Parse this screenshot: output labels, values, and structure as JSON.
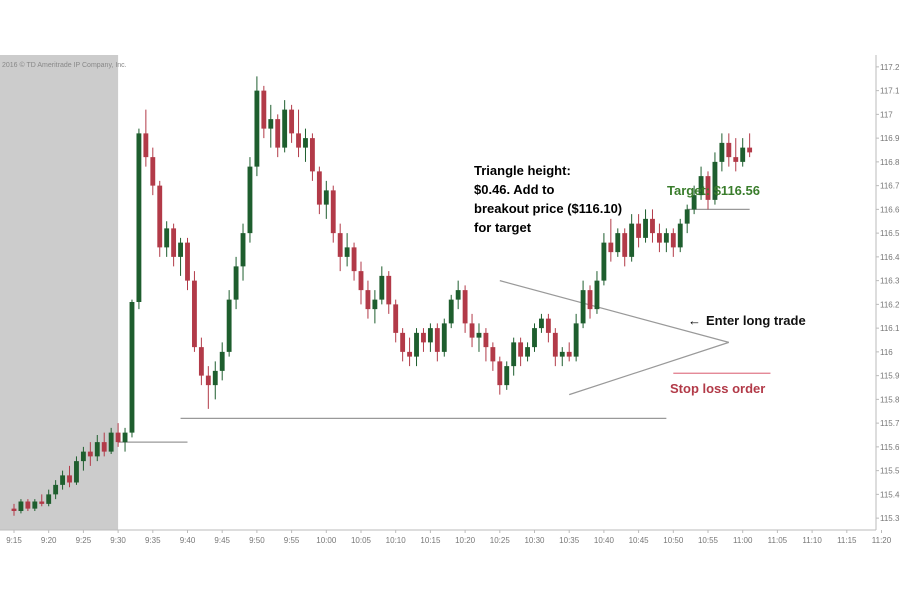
{
  "chart_data": {
    "type": "candlestick",
    "copyright": "2016 © TD Ameritrade IP Company, Inc.",
    "colors": {
      "up": "#1e5e2e",
      "down": "#b23a48",
      "premarket_shade": "#cccccc",
      "annotation_text": "#111111",
      "target_text": "#3a7d2c",
      "stop_text": "#b23a48",
      "trend_line": "#999999",
      "stop_line": "#e07a8a"
    },
    "y_axis": {
      "side": "right",
      "range": [
        115.25,
        117.25
      ],
      "ticks": [
        "115.3",
        "115.4",
        "115.5",
        "115.6",
        "115.7",
        "115.8",
        "115.9",
        "116",
        "116.1",
        "116.2",
        "116.3",
        "116.4",
        "116.5",
        "116.6",
        "116.7",
        "116.8",
        "116.9",
        "117",
        "117.1",
        "117.2"
      ]
    },
    "x_axis": {
      "time_ticks": [
        "9:15",
        "9:20",
        "9:25",
        "9:30",
        "9:35",
        "9:40",
        "9:45",
        "9:50",
        "9:55",
        "10:00",
        "10:05",
        "10:10",
        "10:15",
        "10:20",
        "10:25",
        "10:30",
        "10:35",
        "10:40",
        "10:45",
        "10:50",
        "10:55",
        "11:00",
        "11:05",
        "11:10",
        "11:15",
        "11:20"
      ]
    },
    "premarket_end": "9:30",
    "candles": [
      {
        "o": 115.34,
        "h": 115.36,
        "l": 115.31,
        "c": 115.33
      },
      {
        "o": 115.33,
        "h": 115.38,
        "l": 115.32,
        "c": 115.37
      },
      {
        "o": 115.37,
        "h": 115.38,
        "l": 115.33,
        "c": 115.34
      },
      {
        "o": 115.34,
        "h": 115.38,
        "l": 115.33,
        "c": 115.37
      },
      {
        "o": 115.37,
        "h": 115.4,
        "l": 115.35,
        "c": 115.36
      },
      {
        "o": 115.36,
        "h": 115.42,
        "l": 115.35,
        "c": 115.4
      },
      {
        "o": 115.4,
        "h": 115.46,
        "l": 115.38,
        "c": 115.44
      },
      {
        "o": 115.44,
        "h": 115.5,
        "l": 115.42,
        "c": 115.48
      },
      {
        "o": 115.48,
        "h": 115.52,
        "l": 115.43,
        "c": 115.45
      },
      {
        "o": 115.45,
        "h": 115.56,
        "l": 115.44,
        "c": 115.54
      },
      {
        "o": 115.54,
        "h": 115.6,
        "l": 115.5,
        "c": 115.58
      },
      {
        "o": 115.58,
        "h": 115.62,
        "l": 115.52,
        "c": 115.56
      },
      {
        "o": 115.56,
        "h": 115.65,
        "l": 115.54,
        "c": 115.62
      },
      {
        "o": 115.62,
        "h": 115.66,
        "l": 115.56,
        "c": 115.58
      },
      {
        "o": 115.58,
        "h": 115.68,
        "l": 115.57,
        "c": 115.66
      },
      {
        "o": 115.66,
        "h": 115.7,
        "l": 115.6,
        "c": 115.62
      },
      {
        "o": 115.62,
        "h": 115.68,
        "l": 115.58,
        "c": 115.66
      },
      {
        "o": 115.66,
        "h": 116.22,
        "l": 115.64,
        "c": 116.21
      },
      {
        "o": 116.21,
        "h": 116.94,
        "l": 116.18,
        "c": 116.92
      },
      {
        "o": 116.92,
        "h": 117.02,
        "l": 116.78,
        "c": 116.82
      },
      {
        "o": 116.82,
        "h": 116.86,
        "l": 116.66,
        "c": 116.7
      },
      {
        "o": 116.7,
        "h": 116.72,
        "l": 116.4,
        "c": 116.44
      },
      {
        "o": 116.44,
        "h": 116.55,
        "l": 116.4,
        "c": 116.52
      },
      {
        "o": 116.52,
        "h": 116.54,
        "l": 116.36,
        "c": 116.4
      },
      {
        "o": 116.4,
        "h": 116.48,
        "l": 116.32,
        "c": 116.46
      },
      {
        "o": 116.46,
        "h": 116.48,
        "l": 116.26,
        "c": 116.3
      },
      {
        "o": 116.3,
        "h": 116.34,
        "l": 116.0,
        "c": 116.02
      },
      {
        "o": 116.02,
        "h": 116.06,
        "l": 115.86,
        "c": 115.9
      },
      {
        "o": 115.9,
        "h": 115.94,
        "l": 115.76,
        "c": 115.86
      },
      {
        "o": 115.86,
        "h": 115.96,
        "l": 115.8,
        "c": 115.92
      },
      {
        "o": 115.92,
        "h": 116.04,
        "l": 115.88,
        "c": 116.0
      },
      {
        "o": 116.0,
        "h": 116.26,
        "l": 115.98,
        "c": 116.22
      },
      {
        "o": 116.22,
        "h": 116.4,
        "l": 116.18,
        "c": 116.36
      },
      {
        "o": 116.36,
        "h": 116.54,
        "l": 116.3,
        "c": 116.5
      },
      {
        "o": 116.5,
        "h": 116.82,
        "l": 116.46,
        "c": 116.78
      },
      {
        "o": 116.78,
        "h": 117.16,
        "l": 116.74,
        "c": 117.1
      },
      {
        "o": 117.1,
        "h": 117.12,
        "l": 116.9,
        "c": 116.94
      },
      {
        "o": 116.94,
        "h": 117.04,
        "l": 116.86,
        "c": 116.98
      },
      {
        "o": 116.98,
        "h": 117.0,
        "l": 116.82,
        "c": 116.86
      },
      {
        "o": 116.86,
        "h": 117.06,
        "l": 116.84,
        "c": 117.02
      },
      {
        "o": 117.02,
        "h": 117.04,
        "l": 116.88,
        "c": 116.92
      },
      {
        "o": 116.92,
        "h": 117.02,
        "l": 116.82,
        "c": 116.86
      },
      {
        "o": 116.86,
        "h": 116.94,
        "l": 116.8,
        "c": 116.9
      },
      {
        "o": 116.9,
        "h": 116.92,
        "l": 116.72,
        "c": 116.76
      },
      {
        "o": 116.76,
        "h": 116.78,
        "l": 116.58,
        "c": 116.62
      },
      {
        "o": 116.62,
        "h": 116.72,
        "l": 116.56,
        "c": 116.68
      },
      {
        "o": 116.68,
        "h": 116.7,
        "l": 116.46,
        "c": 116.5
      },
      {
        "o": 116.5,
        "h": 116.54,
        "l": 116.34,
        "c": 116.4
      },
      {
        "o": 116.4,
        "h": 116.5,
        "l": 116.36,
        "c": 116.44
      },
      {
        "o": 116.44,
        "h": 116.46,
        "l": 116.3,
        "c": 116.34
      },
      {
        "o": 116.34,
        "h": 116.38,
        "l": 116.2,
        "c": 116.26
      },
      {
        "o": 116.26,
        "h": 116.3,
        "l": 116.14,
        "c": 116.18
      },
      {
        "o": 116.18,
        "h": 116.26,
        "l": 116.12,
        "c": 116.22
      },
      {
        "o": 116.22,
        "h": 116.36,
        "l": 116.2,
        "c": 116.32
      },
      {
        "o": 116.32,
        "h": 116.34,
        "l": 116.16,
        "c": 116.2
      },
      {
        "o": 116.2,
        "h": 116.22,
        "l": 116.04,
        "c": 116.08
      },
      {
        "o": 116.08,
        "h": 116.1,
        "l": 115.96,
        "c": 116.0
      },
      {
        "o": 116.0,
        "h": 116.06,
        "l": 115.94,
        "c": 115.98
      },
      {
        "o": 115.98,
        "h": 116.1,
        "l": 115.94,
        "c": 116.08
      },
      {
        "o": 116.08,
        "h": 116.1,
        "l": 116.0,
        "c": 116.04
      },
      {
        "o": 116.04,
        "h": 116.12,
        "l": 116.0,
        "c": 116.1
      },
      {
        "o": 116.1,
        "h": 116.12,
        "l": 115.96,
        "c": 116.0
      },
      {
        "o": 116.0,
        "h": 116.14,
        "l": 115.98,
        "c": 116.12
      },
      {
        "o": 116.12,
        "h": 116.24,
        "l": 116.1,
        "c": 116.22
      },
      {
        "o": 116.22,
        "h": 116.3,
        "l": 116.18,
        "c": 116.26
      },
      {
        "o": 116.26,
        "h": 116.28,
        "l": 116.08,
        "c": 116.12
      },
      {
        "o": 116.12,
        "h": 116.16,
        "l": 116.02,
        "c": 116.06
      },
      {
        "o": 116.06,
        "h": 116.12,
        "l": 116.0,
        "c": 116.08
      },
      {
        "o": 116.08,
        "h": 116.1,
        "l": 115.96,
        "c": 116.02
      },
      {
        "o": 116.02,
        "h": 116.04,
        "l": 115.92,
        "c": 115.96
      },
      {
        "o": 115.96,
        "h": 115.98,
        "l": 115.82,
        "c": 115.86
      },
      {
        "o": 115.86,
        "h": 115.96,
        "l": 115.84,
        "c": 115.94
      },
      {
        "o": 115.94,
        "h": 116.06,
        "l": 115.9,
        "c": 116.04
      },
      {
        "o": 116.04,
        "h": 116.06,
        "l": 115.94,
        "c": 115.98
      },
      {
        "o": 115.98,
        "h": 116.04,
        "l": 115.96,
        "c": 116.02
      },
      {
        "o": 116.02,
        "h": 116.12,
        "l": 116.0,
        "c": 116.1
      },
      {
        "o": 116.1,
        "h": 116.16,
        "l": 116.08,
        "c": 116.14
      },
      {
        "o": 116.14,
        "h": 116.16,
        "l": 116.04,
        "c": 116.08
      },
      {
        "o": 116.08,
        "h": 116.1,
        "l": 115.94,
        "c": 115.98
      },
      {
        "o": 115.98,
        "h": 116.02,
        "l": 115.94,
        "c": 116.0
      },
      {
        "o": 116.0,
        "h": 116.04,
        "l": 115.96,
        "c": 115.98
      },
      {
        "o": 115.98,
        "h": 116.16,
        "l": 115.96,
        "c": 116.12
      },
      {
        "o": 116.12,
        "h": 116.3,
        "l": 116.1,
        "c": 116.26
      },
      {
        "o": 116.26,
        "h": 116.28,
        "l": 116.14,
        "c": 116.18
      },
      {
        "o": 116.18,
        "h": 116.34,
        "l": 116.16,
        "c": 116.3
      },
      {
        "o": 116.3,
        "h": 116.5,
        "l": 116.28,
        "c": 116.46
      },
      {
        "o": 116.46,
        "h": 116.56,
        "l": 116.38,
        "c": 116.42
      },
      {
        "o": 116.42,
        "h": 116.52,
        "l": 116.4,
        "c": 116.5
      },
      {
        "o": 116.5,
        "h": 116.52,
        "l": 116.36,
        "c": 116.4
      },
      {
        "o": 116.4,
        "h": 116.58,
        "l": 116.38,
        "c": 116.54
      },
      {
        "o": 116.54,
        "h": 116.58,
        "l": 116.44,
        "c": 116.48
      },
      {
        "o": 116.48,
        "h": 116.6,
        "l": 116.46,
        "c": 116.56
      },
      {
        "o": 116.56,
        "h": 116.6,
        "l": 116.46,
        "c": 116.5
      },
      {
        "o": 116.5,
        "h": 116.54,
        "l": 116.42,
        "c": 116.46
      },
      {
        "o": 116.46,
        "h": 116.52,
        "l": 116.42,
        "c": 116.5
      },
      {
        "o": 116.5,
        "h": 116.52,
        "l": 116.4,
        "c": 116.44
      },
      {
        "o": 116.44,
        "h": 116.56,
        "l": 116.42,
        "c": 116.54
      },
      {
        "o": 116.54,
        "h": 116.62,
        "l": 116.5,
        "c": 116.6
      },
      {
        "o": 116.6,
        "h": 116.7,
        "l": 116.58,
        "c": 116.66
      },
      {
        "o": 116.66,
        "h": 116.78,
        "l": 116.64,
        "c": 116.74
      },
      {
        "o": 116.74,
        "h": 116.76,
        "l": 116.6,
        "c": 116.64
      },
      {
        "o": 116.64,
        "h": 116.84,
        "l": 116.62,
        "c": 116.8
      },
      {
        "o": 116.8,
        "h": 116.92,
        "l": 116.76,
        "c": 116.88
      },
      {
        "o": 116.88,
        "h": 116.92,
        "l": 116.78,
        "c": 116.82
      },
      {
        "o": 116.82,
        "h": 116.9,
        "l": 116.76,
        "c": 116.8
      },
      {
        "o": 116.8,
        "h": 116.9,
        "l": 116.78,
        "c": 116.86
      },
      {
        "o": 116.86,
        "h": 116.92,
        "l": 116.82,
        "c": 116.84
      }
    ],
    "lines": [
      {
        "kind": "support",
        "from": {
          "t": "9:30",
          "price": 115.62
        },
        "to": {
          "t": "9:40",
          "price": 115.62
        }
      },
      {
        "kind": "support",
        "from": {
          "t": "9:39",
          "price": 115.72
        },
        "to": {
          "t": "10:49",
          "price": 115.72
        }
      },
      {
        "kind": "triangle",
        "from": {
          "t": "10:25",
          "price": 116.3
        },
        "to": {
          "t": "10:58",
          "price": 116.04
        }
      },
      {
        "kind": "triangle",
        "from": {
          "t": "10:35",
          "price": 115.82
        },
        "to": {
          "t": "10:58",
          "price": 116.04
        }
      },
      {
        "kind": "target",
        "from": {
          "t": "10:52",
          "price": 116.6
        },
        "to": {
          "t": "11:01",
          "price": 116.6
        }
      },
      {
        "kind": "stop",
        "from": {
          "t": "10:50",
          "price": 115.91
        },
        "to": {
          "t": "11:04",
          "price": 115.91
        }
      }
    ],
    "annotations": {
      "triangle_height": [
        "Triangle height:",
        "$0.46. Add to",
        "breakout price ($116.10)",
        "for target"
      ],
      "target": "Target: $116.56",
      "enter": "Enter long trade",
      "stop": "Stop loss order"
    }
  }
}
